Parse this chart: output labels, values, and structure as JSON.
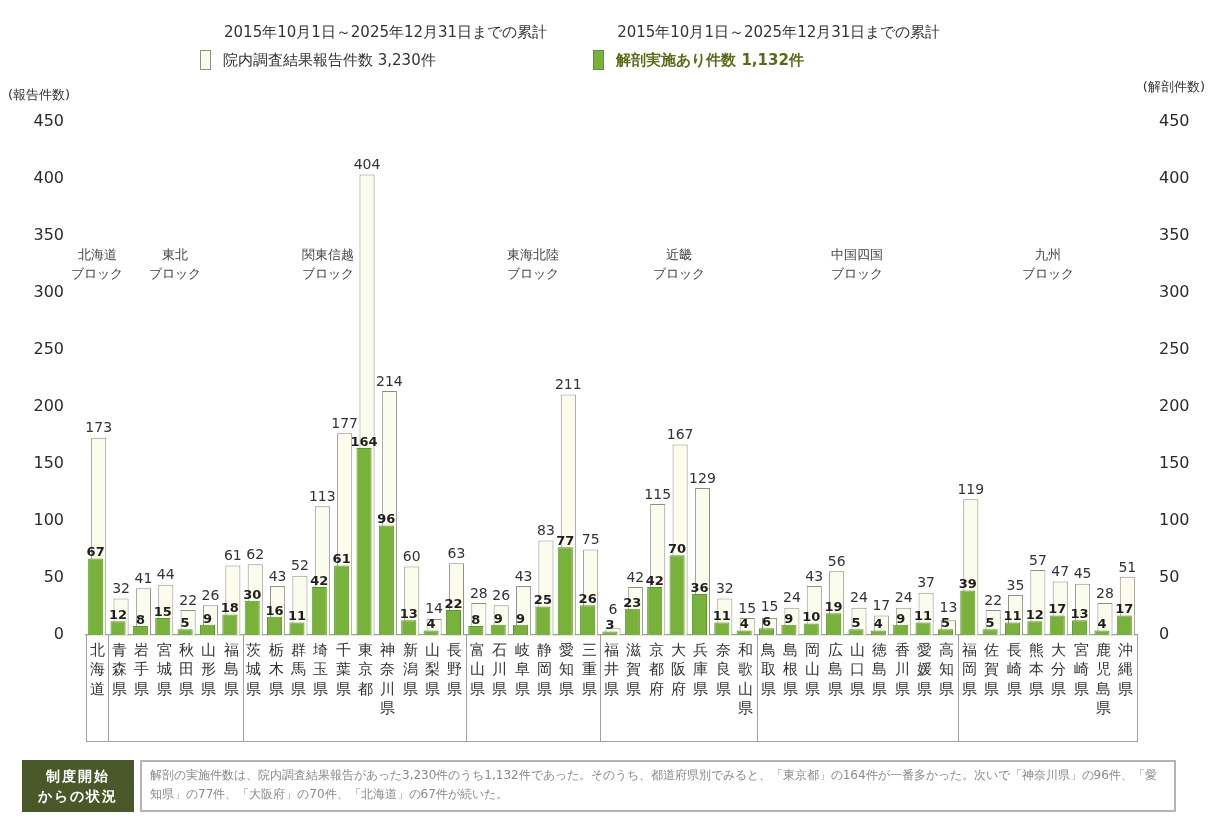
{
  "chart_data": {
    "type": "bar",
    "categories": [
      "北海道",
      "青森県",
      "岩手県",
      "宮城県",
      "秋田県",
      "山形県",
      "福島県",
      "茨城県",
      "栃木県",
      "群馬県",
      "埼玉県",
      "千葉県",
      "東京都",
      "神奈川県",
      "新潟県",
      "山梨県",
      "長野県",
      "富山県",
      "石川県",
      "岐阜県",
      "静岡県",
      "愛知県",
      "三重県",
      "福井県",
      "滋賀県",
      "京都府",
      "大阪府",
      "兵庫県",
      "奈良県",
      "和歌山県",
      "鳥取県",
      "島根県",
      "岡山県",
      "広島県",
      "山口県",
      "徳島県",
      "香川県",
      "愛媛県",
      "高知県",
      "福岡県",
      "佐賀県",
      "長崎県",
      "熊本県",
      "大分県",
      "宮崎県",
      "鹿児島県",
      "沖縄県"
    ],
    "legend_title": "2015年10月1日～2025年12月31日までの累計",
    "series": [
      {
        "name": "院内調査結果報告件数 3,230件",
        "color": "#fbfbee",
        "values": [
          173,
          32,
          41,
          44,
          22,
          26,
          61,
          62,
          43,
          52,
          113,
          177,
          404,
          214,
          60,
          14,
          63,
          28,
          26,
          43,
          83,
          211,
          75,
          6,
          42,
          115,
          167,
          129,
          32,
          15,
          15,
          24,
          43,
          56,
          24,
          17,
          24,
          37,
          13,
          119,
          22,
          35,
          57,
          47,
          45,
          28,
          51
        ]
      },
      {
        "name": "解剖実施あり件数 1,132件",
        "color": "#78b23a",
        "axis": "y2",
        "values": [
          67,
          12,
          8,
          15,
          5,
          9,
          18,
          30,
          16,
          11,
          42,
          61,
          164,
          96,
          13,
          4,
          22,
          8,
          9,
          9,
          25,
          77,
          26,
          3,
          23,
          42,
          70,
          36,
          11,
          4,
          6,
          9,
          10,
          19,
          5,
          4,
          9,
          11,
          5,
          39,
          5,
          11,
          12,
          17,
          13,
          4,
          17
        ]
      }
    ],
    "ylabel": "(報告件数)",
    "y2label": "(解剖件数)",
    "ylim": [
      0,
      450
    ],
    "yticks": [
      0,
      50,
      100,
      150,
      200,
      250,
      300,
      350,
      400,
      450
    ],
    "y2lim": [
      0,
      450
    ],
    "y2ticks": [
      0,
      50,
      100,
      150,
      200,
      250,
      300,
      350,
      400,
      450
    ],
    "data_labels": true,
    "legend": "top",
    "annotations": [
      "北海道ブロック",
      "東北ブロック",
      "関東信越ブロック",
      "東海北陸ブロック",
      "近畿ブロック",
      "中国四国ブロック",
      "九州ブロック",
      "制度開始からの状況",
      "解剖の実施件数は、院内調査結果報告があった3,230件のうち1,132件であった。そのうち、都道府県別でみると、「東京都」の164件が一番多かった。次いで「神奈川県」の96件、「愛知県」の77件、「大阪府」の70件、「北海道」の67件が続いた。"
    ]
  }
}
